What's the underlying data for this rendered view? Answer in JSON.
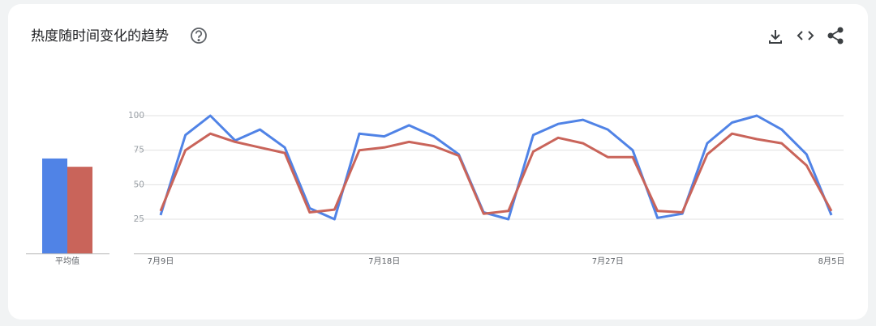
{
  "title": "热度随时间变化的趋势",
  "chart_data": [
    {
      "type": "line",
      "categories": [
        "7月9日",
        null,
        null,
        null,
        null,
        null,
        null,
        null,
        null,
        "7月18日",
        null,
        null,
        null,
        null,
        null,
        null,
        null,
        null,
        "7月27日",
        null,
        null,
        null,
        null,
        null,
        null,
        null,
        null,
        "8月5日"
      ],
      "series": [
        {
          "color": "#5083e6",
          "values": [
            28,
            86,
            100,
            82,
            90,
            77,
            33,
            25,
            87,
            85,
            93,
            85,
            72,
            30,
            25,
            86,
            94,
            97,
            90,
            75,
            26,
            29,
            80,
            95,
            100,
            90,
            72,
            28
          ]
        },
        {
          "color": "#c9645a",
          "values": [
            31,
            75,
            87,
            81,
            77,
            73,
            30,
            32,
            75,
            77,
            81,
            78,
            71,
            29,
            31,
            74,
            84,
            80,
            70,
            70,
            31,
            30,
            72,
            87,
            83,
            80,
            64,
            31
          ]
        }
      ],
      "ylim": [
        0,
        100
      ],
      "yticks": [
        25,
        50,
        75,
        100
      ],
      "grid": true
    },
    {
      "type": "bar",
      "categories": [
        "平均值"
      ],
      "series": [
        {
          "color": "#5083e6",
          "values": [
            69
          ]
        },
        {
          "color": "#c9645a",
          "values": [
            63
          ]
        }
      ],
      "ylim": [
        0,
        100
      ]
    }
  ]
}
